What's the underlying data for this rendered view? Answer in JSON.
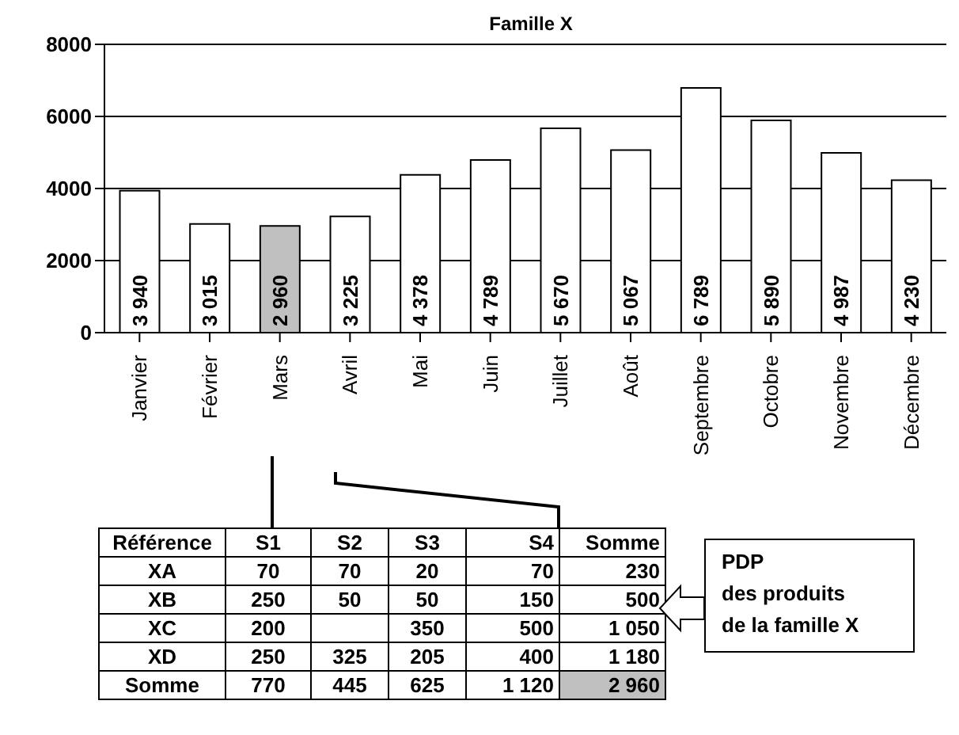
{
  "chart_data": [
    {
      "type": "bar",
      "title": "Famille X",
      "categories": [
        "Janvier",
        "Février",
        "Mars",
        "Avril",
        "Mai",
        "Juin",
        "Juillet",
        "Août",
        "Septembre",
        "Octobre",
        "Novembre",
        "Décembre"
      ],
      "values": [
        3940,
        3015,
        2960,
        3225,
        4378,
        4789,
        5670,
        5067,
        6789,
        5890,
        4987,
        4230
      ],
      "value_labels": [
        "3 940",
        "3 015",
        "2 960",
        "3 225",
        "4 378",
        "4 789",
        "5 670",
        "5 067",
        "6 789",
        "5 890",
        "4 987",
        "4 230"
      ],
      "colors": [
        "#ffffff",
        "#ffffff",
        "#c0c0c0",
        "#ffffff",
        "#ffffff",
        "#ffffff",
        "#ffffff",
        "#ffffff",
        "#ffffff",
        "#ffffff",
        "#ffffff",
        "#ffffff"
      ],
      "ylim": [
        0,
        8000
      ],
      "yticks": [
        0,
        2000,
        4000,
        6000,
        8000
      ],
      "grid": "y"
    },
    {
      "type": "other",
      "legend_title": "Référence",
      "categories": [
        "S1",
        "S2",
        "S3",
        "S4",
        "Somme"
      ],
      "series": [
        {
          "name": "XA",
          "color": "#ffffff",
          "values": [
            70,
            70,
            20,
            70,
            230
          ]
        },
        {
          "name": "XB",
          "color": "#ffffff",
          "values": [
            250,
            50,
            50,
            150,
            500
          ]
        },
        {
          "name": "XC",
          "color": "#ffffff",
          "values": [
            200,
            null,
            350,
            500,
            1050
          ]
        },
        {
          "name": "XD",
          "color": "#ffffff",
          "values": [
            250,
            325,
            205,
            400,
            1180
          ]
        },
        {
          "name": "Somme",
          "colors": [
            "#ffffff",
            "#ffffff",
            "#ffffff",
            "#ffffff",
            "#c0c0c0"
          ],
          "values": [
            770,
            445,
            625,
            1120,
            2960
          ]
        }
      ],
      "data_labels": true,
      "annotations": [
        "PDP",
        "des produits",
        "de la famille X"
      ]
    }
  ]
}
